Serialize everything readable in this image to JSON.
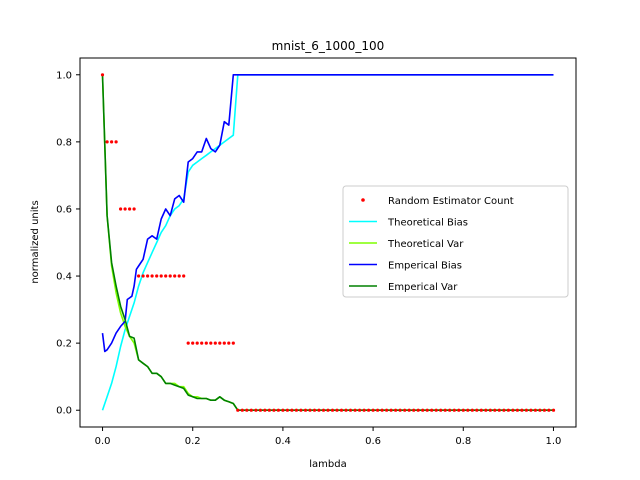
{
  "chart_data": {
    "type": "line",
    "title": "mnist_6_1000_100",
    "xlabel": "lambda",
    "ylabel": "normalized units",
    "xlim": [
      -0.05,
      1.05
    ],
    "ylim": [
      -0.05,
      1.05
    ],
    "xticks": [
      0.0,
      0.2,
      0.4,
      0.6,
      0.8,
      1.0
    ],
    "xtick_labels": [
      "0.0",
      "0.2",
      "0.4",
      "0.6",
      "0.8",
      "1.0"
    ],
    "yticks": [
      0.0,
      0.2,
      0.4,
      0.6,
      0.8,
      1.0
    ],
    "ytick_labels": [
      "0.0",
      "0.2",
      "0.4",
      "0.6",
      "0.8",
      "1.0"
    ],
    "grid": false,
    "legend_position": "center-right",
    "series": [
      {
        "name": "Random Estimator Count",
        "style": "dots",
        "color": "#ff0000",
        "x": [
          0.0,
          0.01,
          0.02,
          0.03,
          0.04,
          0.05,
          0.06,
          0.07,
          0.08,
          0.09,
          0.1,
          0.11,
          0.12,
          0.13,
          0.14,
          0.15,
          0.16,
          0.17,
          0.18,
          0.19,
          0.2,
          0.21,
          0.22,
          0.23,
          0.24,
          0.25,
          0.26,
          0.27,
          0.28,
          0.29,
          0.3,
          0.31,
          0.32,
          0.33,
          0.34,
          0.35,
          0.36,
          0.37,
          0.38,
          0.39,
          0.4,
          0.41,
          0.42,
          0.43,
          0.44,
          0.45,
          0.46,
          0.47,
          0.48,
          0.49,
          0.5,
          0.51,
          0.52,
          0.53,
          0.54,
          0.55,
          0.56,
          0.57,
          0.58,
          0.59,
          0.6,
          0.61,
          0.62,
          0.63,
          0.64,
          0.65,
          0.66,
          0.67,
          0.68,
          0.69,
          0.7,
          0.71,
          0.72,
          0.73,
          0.74,
          0.75,
          0.76,
          0.77,
          0.78,
          0.79,
          0.8,
          0.81,
          0.82,
          0.83,
          0.84,
          0.85,
          0.86,
          0.87,
          0.88,
          0.89,
          0.9,
          0.91,
          0.92,
          0.93,
          0.94,
          0.95,
          0.96,
          0.97,
          0.98,
          0.99,
          1.0
        ],
        "y": [
          1.0,
          0.8,
          0.8,
          0.8,
          0.6,
          0.6,
          0.6,
          0.6,
          0.4,
          0.4,
          0.4,
          0.4,
          0.4,
          0.4,
          0.4,
          0.4,
          0.4,
          0.4,
          0.4,
          0.2,
          0.2,
          0.2,
          0.2,
          0.2,
          0.2,
          0.2,
          0.2,
          0.2,
          0.2,
          0.2,
          0.0,
          0.0,
          0.0,
          0.0,
          0.0,
          0.0,
          0.0,
          0.0,
          0.0,
          0.0,
          0.0,
          0.0,
          0.0,
          0.0,
          0.0,
          0.0,
          0.0,
          0.0,
          0.0,
          0.0,
          0.0,
          0.0,
          0.0,
          0.0,
          0.0,
          0.0,
          0.0,
          0.0,
          0.0,
          0.0,
          0.0,
          0.0,
          0.0,
          0.0,
          0.0,
          0.0,
          0.0,
          0.0,
          0.0,
          0.0,
          0.0,
          0.0,
          0.0,
          0.0,
          0.0,
          0.0,
          0.0,
          0.0,
          0.0,
          0.0,
          0.0,
          0.0,
          0.0,
          0.0,
          0.0,
          0.0,
          0.0,
          0.0,
          0.0,
          0.0,
          0.0,
          0.0,
          0.0,
          0.0,
          0.0,
          0.0,
          0.0,
          0.0,
          0.0,
          0.0,
          0.0
        ]
      },
      {
        "name": "Theoretical Bias",
        "style": "line",
        "color": "#00ffff",
        "x": [
          0.0,
          0.01,
          0.02,
          0.03,
          0.04,
          0.05,
          0.06,
          0.07,
          0.08,
          0.09,
          0.1,
          0.11,
          0.12,
          0.13,
          0.14,
          0.15,
          0.16,
          0.17,
          0.18,
          0.19,
          0.2,
          0.21,
          0.22,
          0.23,
          0.24,
          0.25,
          0.26,
          0.27,
          0.28,
          0.29,
          0.3,
          0.4,
          0.5,
          0.6,
          0.7,
          0.8,
          0.9,
          1.0
        ],
        "y": [
          0.0,
          0.04,
          0.08,
          0.13,
          0.19,
          0.24,
          0.28,
          0.32,
          0.37,
          0.41,
          0.44,
          0.47,
          0.5,
          0.53,
          0.55,
          0.58,
          0.6,
          0.61,
          0.63,
          0.71,
          0.73,
          0.74,
          0.75,
          0.76,
          0.77,
          0.78,
          0.79,
          0.8,
          0.81,
          0.82,
          1.0,
          1.0,
          1.0,
          1.0,
          1.0,
          1.0,
          1.0,
          1.0
        ]
      },
      {
        "name": "Theoretical Var",
        "style": "line",
        "color": "#7fff00",
        "x": [
          0.0,
          0.01,
          0.02,
          0.03,
          0.04,
          0.05,
          0.06,
          0.07,
          0.08,
          0.09,
          0.1,
          0.11,
          0.12,
          0.13,
          0.14,
          0.15,
          0.16,
          0.17,
          0.18,
          0.19,
          0.2,
          0.21,
          0.22,
          0.23,
          0.24,
          0.25,
          0.26,
          0.27,
          0.28,
          0.29,
          0.3,
          0.4,
          0.5,
          0.6,
          0.7,
          0.8,
          0.9,
          1.0
        ],
        "y": [
          1.0,
          0.58,
          0.43,
          0.35,
          0.29,
          0.25,
          0.22,
          0.2,
          0.15,
          0.14,
          0.13,
          0.11,
          0.11,
          0.1,
          0.08,
          0.08,
          0.08,
          0.07,
          0.07,
          0.05,
          0.04,
          0.04,
          0.035,
          0.035,
          0.03,
          0.03,
          0.04,
          0.03,
          0.025,
          0.02,
          0.0,
          0.0,
          0.0,
          0.0,
          0.0,
          0.0,
          0.0,
          0.0
        ]
      },
      {
        "name": "Emperical Bias",
        "style": "line",
        "color": "#0000ff",
        "x": [
          0.0,
          0.005,
          0.01,
          0.02,
          0.03,
          0.04,
          0.05,
          0.055,
          0.06,
          0.065,
          0.07,
          0.075,
          0.08,
          0.09,
          0.1,
          0.11,
          0.12,
          0.13,
          0.14,
          0.15,
          0.16,
          0.17,
          0.18,
          0.19,
          0.2,
          0.21,
          0.22,
          0.23,
          0.24,
          0.25,
          0.26,
          0.27,
          0.28,
          0.29,
          0.3,
          0.4,
          0.5,
          0.6,
          0.7,
          0.8,
          0.9,
          1.0
        ],
        "y": [
          0.23,
          0.175,
          0.18,
          0.2,
          0.23,
          0.25,
          0.265,
          0.33,
          0.335,
          0.34,
          0.37,
          0.42,
          0.43,
          0.45,
          0.51,
          0.52,
          0.51,
          0.57,
          0.6,
          0.58,
          0.63,
          0.64,
          0.62,
          0.74,
          0.75,
          0.77,
          0.77,
          0.81,
          0.78,
          0.77,
          0.79,
          0.86,
          0.85,
          1.0,
          1.0,
          1.0,
          1.0,
          1.0,
          1.0,
          1.0,
          1.0,
          1.0
        ]
      },
      {
        "name": "Emperical Var",
        "style": "line",
        "color": "#008000",
        "x": [
          0.0,
          0.01,
          0.02,
          0.03,
          0.04,
          0.05,
          0.06,
          0.07,
          0.08,
          0.09,
          0.1,
          0.11,
          0.12,
          0.13,
          0.14,
          0.15,
          0.16,
          0.17,
          0.18,
          0.19,
          0.2,
          0.21,
          0.22,
          0.23,
          0.24,
          0.25,
          0.26,
          0.27,
          0.28,
          0.29,
          0.3,
          0.4,
          0.5,
          0.6,
          0.7,
          0.8,
          0.9,
          1.0
        ],
        "y": [
          1.0,
          0.58,
          0.44,
          0.37,
          0.31,
          0.27,
          0.22,
          0.215,
          0.15,
          0.14,
          0.13,
          0.11,
          0.11,
          0.1,
          0.08,
          0.08,
          0.075,
          0.07,
          0.065,
          0.045,
          0.04,
          0.035,
          0.035,
          0.035,
          0.03,
          0.03,
          0.04,
          0.03,
          0.025,
          0.02,
          0.0,
          0.0,
          0.0,
          0.0,
          0.0,
          0.0,
          0.0,
          0.0
        ]
      }
    ]
  }
}
